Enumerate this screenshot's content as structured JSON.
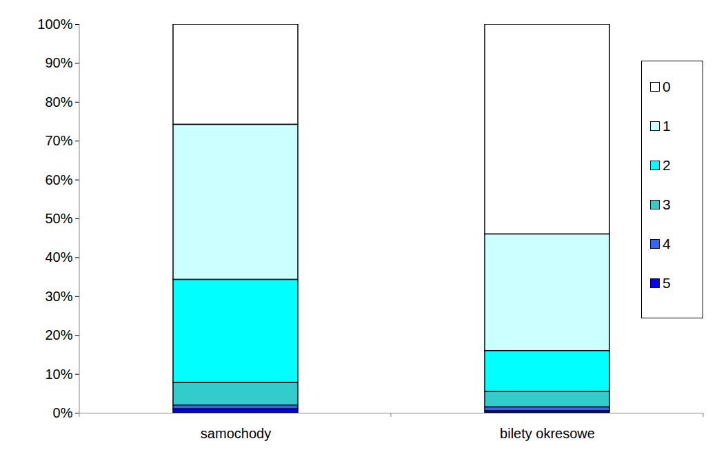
{
  "chart_data": {
    "type": "bar",
    "stacked": true,
    "legend": "right",
    "categories": [
      "samochody",
      "bilety okresowe"
    ],
    "series": [
      {
        "name": "0",
        "color": "#ffffff",
        "values": [
          25.8,
          54
        ]
      },
      {
        "name": "1",
        "color": "#ccffff",
        "values": [
          39.9,
          30
        ]
      },
      {
        "name": "2",
        "color": "#00ffff",
        "values": [
          26.5,
          10.5
        ]
      },
      {
        "name": "3",
        "color": "#33cccc",
        "values": [
          5.8,
          4
        ]
      },
      {
        "name": "4",
        "color": "#3366ff",
        "values": [
          1,
          1
        ]
      },
      {
        "name": "5",
        "color": "#0000ff",
        "values": [
          1,
          0.5
        ]
      }
    ],
    "ylim": [
      0,
      100
    ],
    "yticks": [
      {
        "value": 0,
        "label": "0%"
      },
      {
        "value": 10,
        "label": "10%"
      },
      {
        "value": 20,
        "label": "20%"
      },
      {
        "value": 30,
        "label": "30%"
      },
      {
        "value": 40,
        "label": "40%"
      },
      {
        "value": 50,
        "label": "50%"
      },
      {
        "value": 60,
        "label": "60%"
      },
      {
        "value": 70,
        "label": "70%"
      },
      {
        "value": 80,
        "label": "80%"
      },
      {
        "value": 90,
        "label": "90%"
      },
      {
        "value": 100,
        "label": "100%"
      }
    ],
    "grid": false
  }
}
